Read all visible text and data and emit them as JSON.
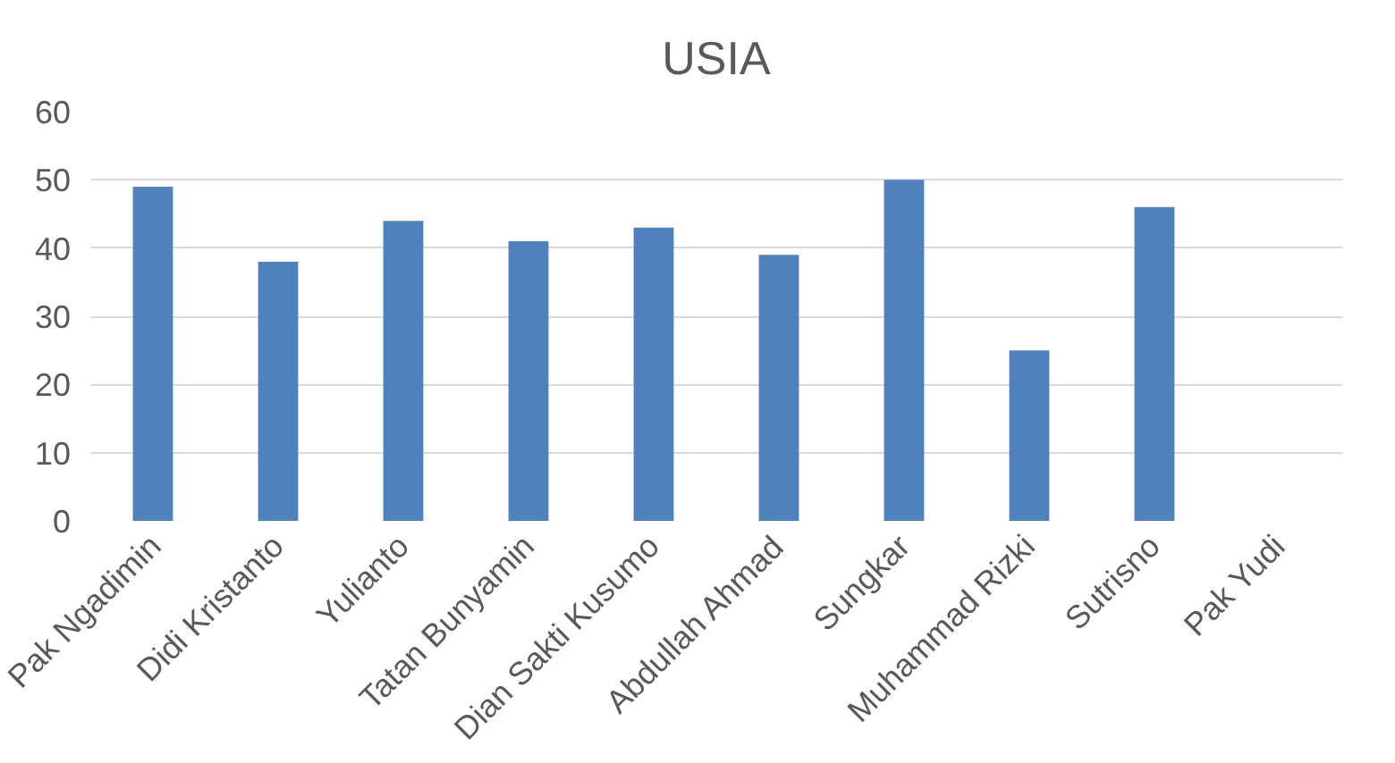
{
  "chart_data": {
    "type": "bar",
    "title": "USIA",
    "categories": [
      "Pak Ngadimin",
      "Didi Kristanto",
      "Yulianto",
      "Tatan Bunyamin",
      "Dian Sakti Kusumo",
      "Abdullah Ahmad",
      "Sungkar",
      "Muhammad Rizki",
      "Sutrisno",
      "Pak Yudi"
    ],
    "values": [
      49,
      38,
      44,
      41,
      43,
      39,
      50,
      25,
      46,
      null
    ],
    "color": "#4f81bd",
    "ylim": [
      0,
      60
    ],
    "yticks": [
      0,
      10,
      20,
      30,
      40,
      50,
      60
    ],
    "grid": "y"
  }
}
